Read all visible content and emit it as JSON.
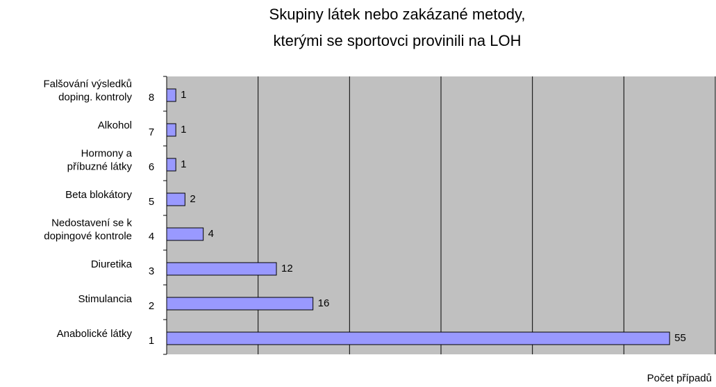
{
  "chart_data": {
    "type": "bar",
    "orientation": "horizontal",
    "title": [
      "Skupiny látek nebo zakázané metody,",
      "kterými se sportovci provinili na LOH"
    ],
    "x_label": "Počet případů",
    "categories": [
      "1",
      "2",
      "3",
      "4",
      "5",
      "6",
      "7",
      "8"
    ],
    "category_names": [
      [
        "Anabolické látky"
      ],
      [
        "Stimulancia"
      ],
      [
        "Diuretika"
      ],
      [
        "Nedostavení se k",
        "dopingové kontrole"
      ],
      [
        "Beta blokátory"
      ],
      [
        "Hormony a",
        "příbuzné látky"
      ],
      [
        "Alkohol"
      ],
      [
        "Falšování výsledků",
        "doping. kontroly"
      ]
    ],
    "values": [
      55,
      16,
      12,
      4,
      2,
      1,
      1,
      1
    ],
    "color": "#9999ff",
    "plot_background": "#c0c0c0",
    "xlim": [
      0,
      60
    ],
    "xticks": [
      0,
      10,
      20,
      30,
      40,
      50,
      60
    ],
    "grid": true
  }
}
